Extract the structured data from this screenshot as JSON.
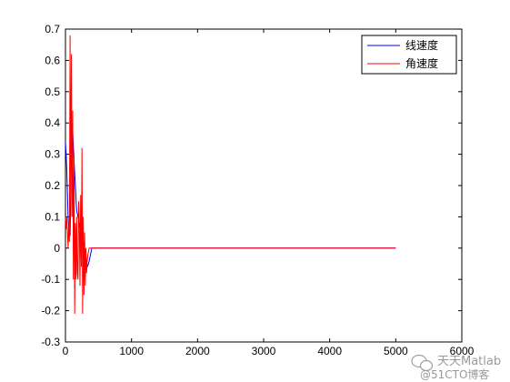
{
  "chart_data": {
    "type": "line",
    "xlim": [
      0,
      6000
    ],
    "ylim": [
      -0.3,
      0.7
    ],
    "x_ticks": [
      0,
      1000,
      2000,
      3000,
      4000,
      5000,
      6000
    ],
    "y_ticks": [
      -0.3,
      -0.2,
      -0.1,
      0,
      0.1,
      0.2,
      0.3,
      0.4,
      0.5,
      0.6,
      0.7
    ],
    "x_tick_labels": [
      "0",
      "1000",
      "2000",
      "3000",
      "4000",
      "5000",
      "6000"
    ],
    "y_tick_labels": [
      "-0.3",
      "-0.2",
      "-0.1",
      "0",
      "0.1",
      "0.2",
      "0.3",
      "0.4",
      "0.5",
      "0.6",
      "0.7"
    ],
    "grid": false,
    "legend_position": "top-right",
    "series": [
      {
        "name": "线速度",
        "color": "#0000ff",
        "x": [
          0,
          10,
          20,
          30,
          40,
          55,
          70,
          90,
          110,
          130,
          150,
          170,
          190,
          210,
          230,
          250,
          270,
          290,
          310,
          330,
          350,
          370,
          390,
          400,
          420,
          5000
        ],
        "y": [
          0.34,
          0.3,
          0.25,
          0.18,
          0.1,
          0.05,
          0.04,
          0.35,
          0.37,
          0.28,
          0.2,
          0.12,
          0.1,
          0.08,
          0.06,
          0.04,
          0.02,
          0.0,
          -0.03,
          -0.06,
          -0.05,
          -0.03,
          -0.01,
          0.0,
          0.0,
          0.0
        ]
      },
      {
        "name": "角速度",
        "color": "#ff0000",
        "x": [
          0,
          10,
          20,
          30,
          40,
          50,
          60,
          70,
          80,
          90,
          100,
          110,
          120,
          130,
          140,
          150,
          160,
          170,
          180,
          190,
          200,
          210,
          220,
          230,
          240,
          250,
          260,
          270,
          280,
          290,
          300,
          310,
          320,
          330,
          340,
          350,
          360,
          380,
          400,
          5000
        ],
        "y": [
          0.1,
          0.06,
          0.1,
          0.05,
          0.0,
          0.08,
          0.02,
          0.68,
          0.1,
          0.62,
          0.1,
          0.44,
          -0.1,
          0.3,
          -0.21,
          0.08,
          -0.1,
          0.1,
          -0.08,
          -0.1,
          0.15,
          0.08,
          -0.12,
          0.17,
          -0.06,
          0.32,
          -0.21,
          0.1,
          -0.15,
          0.05,
          -0.12,
          0.0,
          -0.08,
          -0.04,
          -0.02,
          -0.01,
          0.0,
          0.0,
          0.0,
          0.0
        ]
      }
    ]
  },
  "watermark": {
    "line1": "天天Matlab",
    "line2": "@51CTO博客"
  }
}
